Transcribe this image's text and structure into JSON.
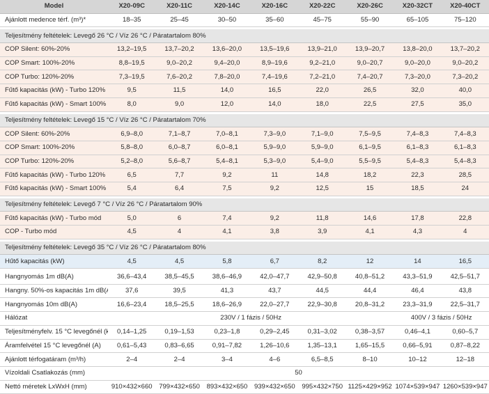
{
  "header": {
    "label": "Model",
    "models": [
      "X20-09C",
      "X20-11C",
      "X20-14C",
      "X20-16C",
      "X20-22C",
      "X20-26C",
      "X20-32CT",
      "X20-40CT"
    ]
  },
  "blocks": [
    {
      "rows": [
        {
          "style": "white",
          "label": "Ajánlott medence térf. (m³)*",
          "values": [
            "18–35",
            "25–45",
            "30–50",
            "35–60",
            "45–75",
            "55–90",
            "65–105",
            "75–120"
          ]
        }
      ]
    },
    {
      "section": "Teljesítmény feltételek: Levegő 26 °C / Víz 26 °C / Páratartalom 80%",
      "rows": [
        {
          "style": "pink",
          "label": "COP Silent: 60%-20%",
          "values": [
            "13,2–19,5",
            "13,7–20,2",
            "13,6–20,0",
            "13,5–19,6",
            "13,9–21,0",
            "13,9–20,7",
            "13,8–20,0",
            "13,7–20,2"
          ]
        },
        {
          "style": "pink",
          "label": "COP Smart: 100%-20%",
          "values": [
            "8,8–19,5",
            "9,0–20,2",
            "9,4–20,0",
            "8,9–19,6",
            "9,2–21,0",
            "9,0–20,7",
            "9,0–20,0",
            "9,0–20,2"
          ]
        },
        {
          "style": "pink",
          "label": "COP Turbo: 120%-20%",
          "values": [
            "7,3–19,5",
            "7,6–20,2",
            "7,8–20,0",
            "7,4–19,6",
            "7,2–21,0",
            "7,4–20,7",
            "7,3–20,0",
            "7,3–20,2"
          ]
        },
        {
          "style": "pink",
          "label": "Fűtő kapacitás (kW) - Turbo 120%",
          "values": [
            "9,5",
            "11,5",
            "14,0",
            "16,5",
            "22,0",
            "26,5",
            "32,0",
            "40,0"
          ]
        },
        {
          "style": "pink",
          "label": "Fűtő kapacitás (kW) - Smart 100%",
          "values": [
            "8,0",
            "9,0",
            "12,0",
            "14,0",
            "18,0",
            "22,5",
            "27,5",
            "35,0"
          ]
        }
      ]
    },
    {
      "section": "Teljesítmény feltételek: Levegő 15 °C / Víz 26 °C / Páratartalom 70%",
      "rows": [
        {
          "style": "pink",
          "label": "COP Silent: 60%-20%",
          "values": [
            "6,9–8,0",
            "7,1–8,7",
            "7,0–8,1",
            "7,3–9,0",
            "7,1–9,0",
            "7,5–9,5",
            "7,4–8,3",
            "7,4–8,3"
          ]
        },
        {
          "style": "pink",
          "label": "COP Smart: 100%-20%",
          "values": [
            "5,8–8,0",
            "6,0–8,7",
            "6,0–8,1",
            "5,9–9,0",
            "5,9–9,0",
            "6,1–9,5",
            "6,1–8,3",
            "6,1–8,3"
          ]
        },
        {
          "style": "pink",
          "label": "COP Turbo: 120%-20%",
          "values": [
            "5,2–8,0",
            "5,6–8,7",
            "5,4–8,1",
            "5,3–9,0",
            "5,4–9,0",
            "5,5–9,5",
            "5,4–8,3",
            "5,4–8,3"
          ]
        },
        {
          "style": "pink",
          "label": "Fűtő kapacitás (kW) - Turbo 120%",
          "values": [
            "6,5",
            "7,7",
            "9,2",
            "11",
            "14,8",
            "18,2",
            "22,3",
            "28,5"
          ]
        },
        {
          "style": "pink",
          "label": "Fűtő kapacitás (kW) - Smart 100%",
          "values": [
            "5,4",
            "6,4",
            "7,5",
            "9,2",
            "12,5",
            "15",
            "18,5",
            "24"
          ]
        }
      ]
    },
    {
      "section": "Teljesítmény feltételek: Levegő 7 °C / Víz 26 °C / Páratartalom 90%",
      "rows": [
        {
          "style": "pink",
          "label": "Fűtő kapacitás (kW) - Turbo mód",
          "values": [
            "5,0",
            "6",
            "7,4",
            "9,2",
            "11,8",
            "14,6",
            "17,8",
            "22,8"
          ]
        },
        {
          "style": "pink",
          "label": "COP - Turbo mód",
          "values": [
            "4,5",
            "4",
            "4,1",
            "3,8",
            "3,9",
            "4,1",
            "4,3",
            "4"
          ]
        }
      ]
    },
    {
      "section": "Teljesítmény feltételek: Levegő 35 °C / Víz 26 °C / Páratartalom 80%",
      "rows": [
        {
          "style": "blue",
          "label": "Hűtő kapacitás (kW)",
          "values": [
            "4,5",
            "4,5",
            "5,8",
            "6,7",
            "8,2",
            "12",
            "14",
            "16,5"
          ]
        }
      ]
    },
    {
      "rows": [
        {
          "style": "white",
          "label": "Hangnyomás 1m dB(A)",
          "values": [
            "36,6–43,4",
            "38,5–45,5",
            "38,6–46,9",
            "42,0–47,7",
            "42,9–50,8",
            "40,8–51,2",
            "43,3–51,9",
            "42,5–51,7"
          ]
        },
        {
          "style": "white",
          "label": "Hangny. 50%-os kapacitás 1m dB(A)",
          "values": [
            "37,6",
            "39,5",
            "41,3",
            "43,7",
            "44,5",
            "44,4",
            "46,4",
            "43,8"
          ]
        },
        {
          "style": "white",
          "label": "Hangnyomás 10m dB(A)",
          "values": [
            "16,6–23,4",
            "18,5–25,5",
            "18,6–26,9",
            "22,0–27,7",
            "22,9–30,8",
            "20,8–31,2",
            "23,3–31,9",
            "22,5–31,7"
          ]
        },
        {
          "style": "white",
          "label": "Hálózat",
          "spans": [
            {
              "text": "230V / 1 fázis / 50Hz",
              "cols": 6
            },
            {
              "text": "400V / 3 fázis / 50Hz",
              "cols": 2
            }
          ]
        },
        {
          "style": "white",
          "label": "Teljesítményfelv. 15 °C levegőnél (kW)",
          "values": [
            "0,14–1,25",
            "0,19–1,53",
            "0,23–1,8",
            "0,29–2,45",
            "0,31–3,02",
            "0,38–3,57",
            "0,46–4,1",
            "0,60–5,7"
          ]
        },
        {
          "style": "white",
          "label": "Áramfelvétel 15 °C levegőnél (A)",
          "values": [
            "0,61–5,43",
            "0,83–6,65",
            "0,91–7,82",
            "1,26–10,6",
            "1,35–13,1",
            "1,65–15,5",
            "0,66–5,91",
            "0,87–8,22"
          ]
        },
        {
          "style": "white",
          "label": "Ajánlott térfogatáram (m³/h)",
          "values": [
            "2–4",
            "2–4",
            "3–4",
            "4–6",
            "6,5–8,5",
            "8–10",
            "10–12",
            "12–18"
          ]
        },
        {
          "style": "white",
          "label": "Vízoldali Csatlakozás (mm)",
          "spans": [
            {
              "text": "50",
              "cols": 8
            }
          ]
        },
        {
          "style": "white",
          "label": "Nettó méretek LxWxH (mm)",
          "values": [
            "910×432×660",
            "799×432×650",
            "893×432×650",
            "939×432×650",
            "995×432×750",
            "1125×429×952",
            "1074×539×947",
            "1260×539×947"
          ]
        }
      ]
    }
  ]
}
